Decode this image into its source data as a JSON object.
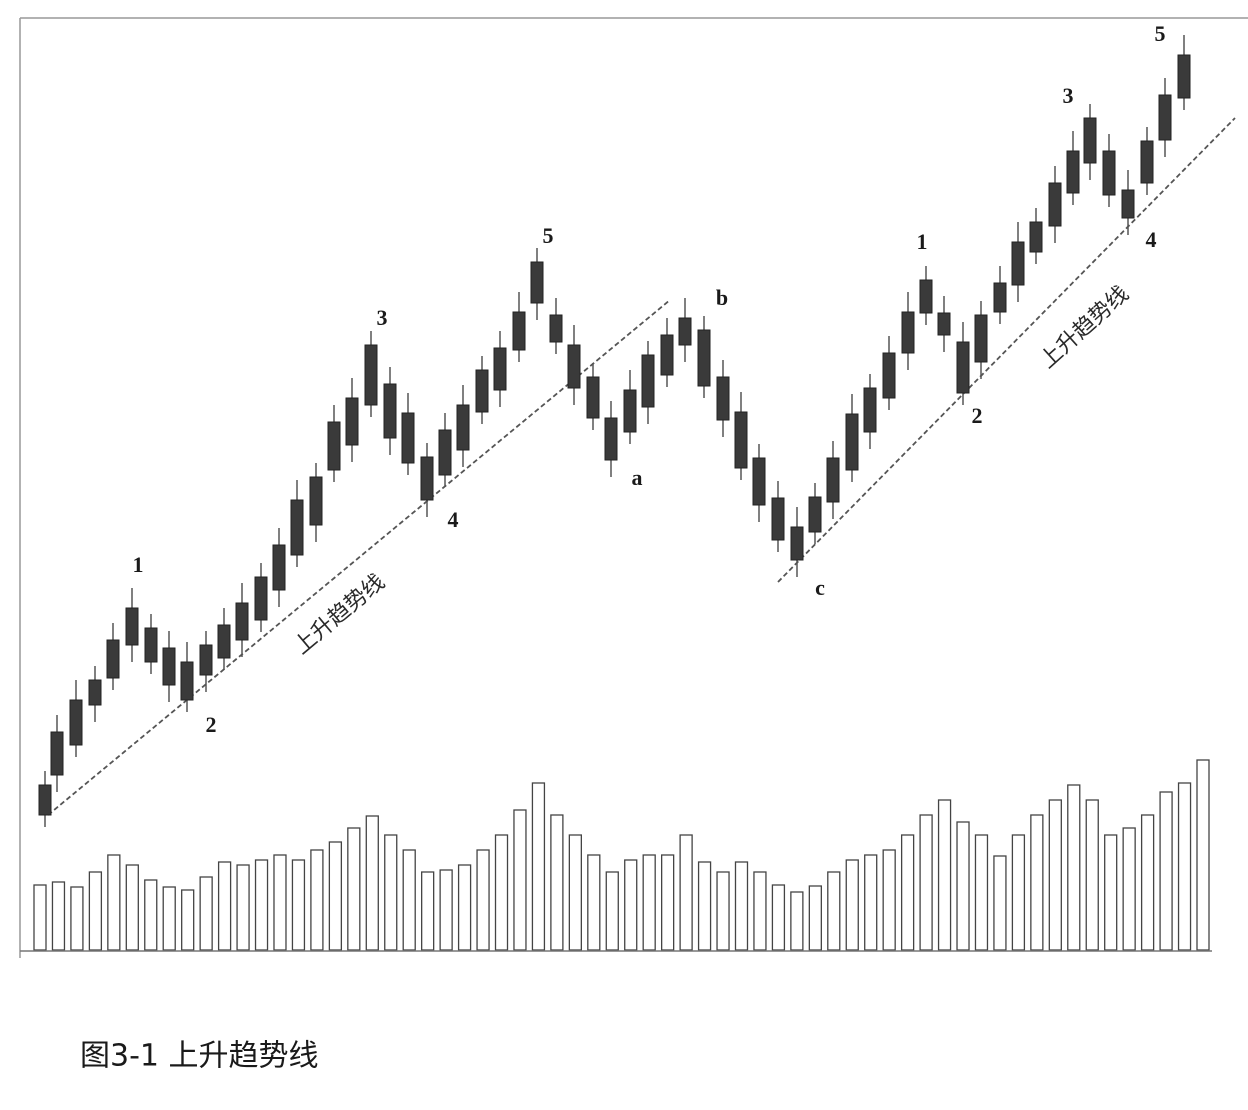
{
  "wave_labels": [
    "1",
    "2",
    "3",
    "4",
    "5",
    "a",
    "b",
    "c",
    "1",
    "2",
    "3",
    "4",
    "5"
  ],
  "trendline_labels": [
    "上升趋势线",
    "上升趋势线"
  ],
  "caption": "图3-1 上升趋势线"
}
